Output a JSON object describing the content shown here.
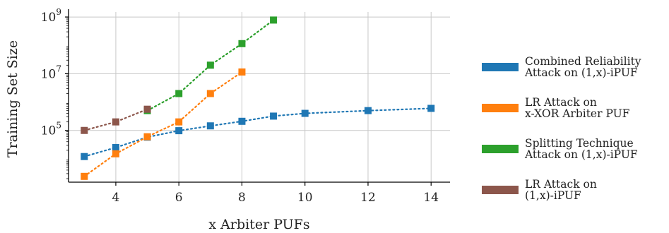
{
  "chart_data": {
    "type": "line",
    "xlabel": "x Arbiter PUFs",
    "ylabel": "Training Set Size",
    "yscale": "log",
    "xlim": [
      2.5,
      14.6
    ],
    "ylim": [
      1500,
      1500000000
    ],
    "xticks": [
      4,
      6,
      8,
      10,
      12,
      14
    ],
    "xtick_labels": [
      "4",
      "6",
      "8",
      "10",
      "12",
      "14"
    ],
    "yticks": [
      100000,
      10000000,
      1000000000
    ],
    "ytick_labels": [
      {
        "base": "10",
        "exp": "5"
      },
      {
        "base": "10",
        "exp": "7"
      },
      {
        "base": "10",
        "exp": "9"
      }
    ],
    "grid": true,
    "legend_position": "right",
    "series": [
      {
        "name": "Combined Reliability Attack on (1,x)-iPUF",
        "legend_lines": [
          "Combined Reliability",
          "Attack on (1,x)-iPUF"
        ],
        "color": "#1f77b4",
        "x": [
          3,
          4,
          5,
          6,
          7,
          8,
          9,
          10,
          12,
          14
        ],
        "y": [
          12000,
          25000,
          58000,
          98000,
          145000,
          210000,
          320000,
          400000,
          500000,
          600000
        ]
      },
      {
        "name": "LR Attack on x-XOR Arbiter PUF",
        "legend_lines": [
          "LR Attack on",
          "x-XOR Arbiter PUF"
        ],
        "color": "#ff7f0e",
        "x": [
          3,
          4,
          5,
          6,
          7,
          8
        ],
        "y": [
          2400,
          15000,
          60000,
          200000,
          2000000,
          11500000
        ]
      },
      {
        "name": "Splitting Technique Attack on (1,x)-iPUF",
        "legend_lines": [
          "Splitting Technique",
          "Attack on (1,x)-iPUF"
        ],
        "color": "#2ca02c",
        "x": [
          5,
          6,
          7,
          8,
          9
        ],
        "y": [
          500000,
          2000000,
          20000000,
          115000000,
          780000000
        ]
      },
      {
        "name": "LR Attack on (1,x)-iPUF",
        "legend_lines": [
          "LR Attack on",
          "(1,x)-iPUF"
        ],
        "color": "#8c564b",
        "x": [
          3,
          4,
          5
        ],
        "y": [
          100000,
          200000,
          560000
        ]
      }
    ]
  }
}
